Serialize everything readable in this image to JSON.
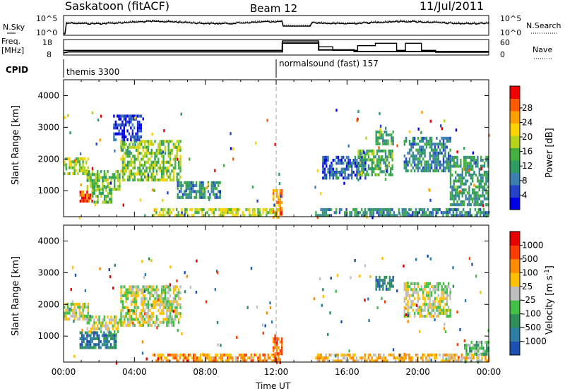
{
  "header": {
    "station": "Saskatoon (fitACF)",
    "beam": "Beam 12",
    "date": "11/Jul/2011"
  },
  "noise_panel": {
    "left_label": "N.Sky",
    "right_label": "N.Search",
    "left_ticks": [
      "10^5",
      "10^0"
    ],
    "right_ticks": [
      "10^5",
      "10^0"
    ]
  },
  "freq_panel": {
    "left_label_1": "Freq.",
    "left_label_2": "[MHz]",
    "right_label": "Nave",
    "left_ticks": [
      "18",
      "8"
    ],
    "right_ticks": [
      "60",
      "0"
    ]
  },
  "cpid": {
    "label": "CPID",
    "programs": [
      {
        "name": "themis 3300",
        "start_hour": 0
      },
      {
        "name": "normalsound (fast) 157",
        "start_hour": 12.0
      }
    ]
  },
  "chart_data": [
    {
      "type": "heatmap",
      "name": "power",
      "ylabel": "Slant Range [km]",
      "xlabel": "",
      "xlim": [
        0,
        24
      ],
      "ylim": [
        180,
        4500
      ],
      "yticks": [
        "1000",
        "2000",
        "3000",
        "4000"
      ],
      "colorbar_label": "Power [dB]",
      "colorbar_ticks": [
        "4",
        "8",
        "12",
        "16",
        "20",
        "24",
        "28"
      ],
      "colorbar_colors": [
        "#0000e6",
        "#2443c8",
        "#3c7fae",
        "#2f9a62",
        "#44b040",
        "#b6d21a",
        "#ffd200",
        "#ffa000",
        "#ff5a00",
        "#f00000"
      ],
      "features": [
        {
          "x": [
            0.0,
            1.4
          ],
          "y": [
            1550,
            2050
          ],
          "level": 0.55
        },
        {
          "x": [
            1.3,
            3.2
          ],
          "y": [
            1050,
            1650
          ],
          "level": 0.45
        },
        {
          "x": [
            3.2,
            6.6
          ],
          "y": [
            1350,
            2600
          ],
          "level": 0.5
        },
        {
          "x": [
            0.9,
            1.6
          ],
          "y": [
            650,
            1000
          ],
          "level": 0.9
        },
        {
          "x": [
            1.6,
            2.7
          ],
          "y": [
            600,
            1150
          ],
          "level": 0.45
        },
        {
          "x": [
            2.8,
            4.4
          ],
          "y": [
            2600,
            3400
          ],
          "level": 0.12
        },
        {
          "x": [
            6.4,
            8.8
          ],
          "y": [
            750,
            1300
          ],
          "level": 0.3
        },
        {
          "x": [
            5.0,
            12.1
          ],
          "y": [
            180,
            450
          ],
          "level": 0.55
        },
        {
          "x": [
            11.8,
            12.3
          ],
          "y": [
            200,
            1050
          ],
          "level": 0.75
        },
        {
          "x": [
            14.2,
            24.0
          ],
          "y": [
            180,
            450
          ],
          "level": 0.3
        },
        {
          "x": [
            14.6,
            17.0
          ],
          "y": [
            1400,
            2100
          ],
          "level": 0.2
        },
        {
          "x": [
            16.6,
            18.6
          ],
          "y": [
            1500,
            2300
          ],
          "level": 0.4
        },
        {
          "x": [
            17.6,
            18.6
          ],
          "y": [
            2450,
            2900
          ],
          "level": 0.4
        },
        {
          "x": [
            19.2,
            21.8
          ],
          "y": [
            1600,
            2700
          ],
          "level": 0.3
        },
        {
          "x": [
            21.8,
            24.0
          ],
          "y": [
            600,
            2100
          ],
          "level": 0.35
        }
      ]
    },
    {
      "type": "heatmap",
      "name": "velocity",
      "ylabel": "Slant Range [km]",
      "xlabel": "Time UT",
      "xlim": [
        0,
        24
      ],
      "ylim": [
        180,
        4500
      ],
      "xticks": [
        "00:00",
        "04:00",
        "08:00",
        "12:00",
        "16:00",
        "20:00",
        "00:00"
      ],
      "yticks": [
        "1000",
        "2000",
        "3000",
        "4000"
      ],
      "colorbar_label": "Velocity [m s^-1]",
      "colorbar_ticks": [
        "1000",
        "500",
        "100",
        "25",
        "-25",
        "-100",
        "-500",
        "-1000"
      ],
      "colorbar_colors": [
        "#1f4fb0",
        "#2e7da2",
        "#2f8f5a",
        "#44c046",
        "#bebebe",
        "#ffc000",
        "#ff8c00",
        "#ff3c00",
        "#e60000"
      ],
      "features": [
        {
          "x": [
            0.0,
            1.4
          ],
          "y": [
            1550,
            2050
          ],
          "level": 0.5
        },
        {
          "x": [
            1.3,
            3.2
          ],
          "y": [
            1050,
            1650
          ],
          "level": 0.5
        },
        {
          "x": [
            3.2,
            6.6
          ],
          "y": [
            1350,
            2600
          ],
          "level": 0.5
        },
        {
          "x": [
            0.9,
            3.0
          ],
          "y": [
            600,
            1150
          ],
          "level": 0.2
        },
        {
          "x": [
            5.0,
            12.1
          ],
          "y": [
            180,
            450
          ],
          "level": 0.7
        },
        {
          "x": [
            11.8,
            12.3
          ],
          "y": [
            200,
            1050
          ],
          "level": 0.8
        },
        {
          "x": [
            14.2,
            24.0
          ],
          "y": [
            180,
            450
          ],
          "level": 0.62
        },
        {
          "x": [
            17.6,
            18.6
          ],
          "y": [
            2450,
            2900
          ],
          "level": 0.2
        },
        {
          "x": [
            19.2,
            21.8
          ],
          "y": [
            1600,
            2700
          ],
          "level": 0.5
        },
        {
          "x": [
            22.6,
            24.0
          ],
          "y": [
            450,
            850
          ],
          "level": 0.38
        }
      ]
    }
  ]
}
